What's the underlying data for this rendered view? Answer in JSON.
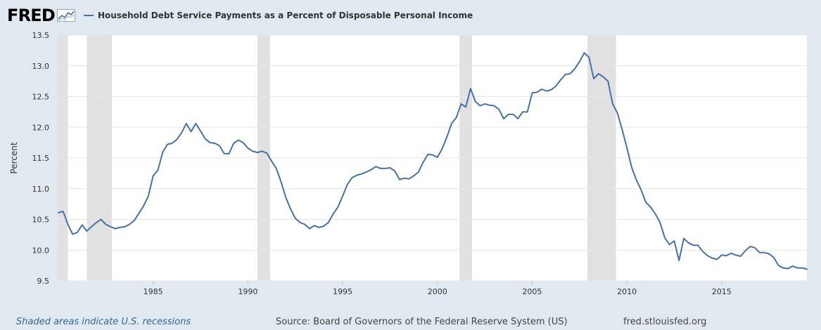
{
  "header": {
    "logo_text": "FRED",
    "legend_label": "Household Debt Service Payments as a Percent of Disposable Personal Income"
  },
  "footer": {
    "recession_note": "Shaded areas indicate U.S. recessions",
    "source": "Source: Board of Governors of the Federal Reserve System (US)",
    "site": "fred.stlouisfed.org"
  },
  "colors": {
    "page_background": "#e1e9f0",
    "plot_background": "#ffffff",
    "series_line": "#4572a7",
    "recession_shade": "#e1e1e1",
    "gridline": "#e6e6e6"
  },
  "chart_data": {
    "type": "line",
    "title": "",
    "xlabel": "",
    "ylabel": "Percent",
    "xlim": [
      1980.0,
      2019.5
    ],
    "ylim": [
      9.5,
      13.5
    ],
    "grid": true,
    "yticks": [
      9.5,
      10.0,
      10.5,
      11.0,
      11.5,
      12.0,
      12.5,
      13.0,
      13.5
    ],
    "ytick_labels": [
      "9.5",
      "10.0",
      "10.5",
      "11.0",
      "11.5",
      "12.0",
      "12.5",
      "13.0",
      "13.5"
    ],
    "xticks": [
      1985,
      1990,
      1995,
      2000,
      2005,
      2010,
      2015
    ],
    "xtick_labels": [
      "1985",
      "1990",
      "1995",
      "2000",
      "2005",
      "2010",
      "2015"
    ],
    "recessions": [
      [
        1980.0,
        1980.5
      ],
      [
        1981.5,
        1982.83
      ],
      [
        1990.5,
        1991.17
      ],
      [
        2001.17,
        2001.83
      ],
      [
        2007.92,
        2009.42
      ]
    ],
    "series": [
      {
        "name": "Household Debt Service Payments as a Percent of Disposable Personal Income",
        "x": [
          1980.0,
          1980.25,
          1980.5,
          1980.75,
          1981.0,
          1981.25,
          1981.5,
          1981.75,
          1982.0,
          1982.25,
          1982.5,
          1982.75,
          1983.0,
          1983.25,
          1983.5,
          1983.75,
          1984.0,
          1984.25,
          1984.5,
          1984.75,
          1985.0,
          1985.25,
          1985.5,
          1985.75,
          1986.0,
          1986.25,
          1986.5,
          1986.75,
          1987.0,
          1987.25,
          1987.5,
          1987.75,
          1988.0,
          1988.25,
          1988.5,
          1988.75,
          1989.0,
          1989.25,
          1989.5,
          1989.75,
          1990.0,
          1990.25,
          1990.5,
          1990.75,
          1991.0,
          1991.25,
          1991.5,
          1991.75,
          1992.0,
          1992.25,
          1992.5,
          1992.75,
          1993.0,
          1993.25,
          1993.5,
          1993.75,
          1994.0,
          1994.25,
          1994.5,
          1994.75,
          1995.0,
          1995.25,
          1995.5,
          1995.75,
          1996.0,
          1996.25,
          1996.5,
          1996.75,
          1997.0,
          1997.25,
          1997.5,
          1997.75,
          1998.0,
          1998.25,
          1998.5,
          1998.75,
          1999.0,
          1999.25,
          1999.5,
          1999.75,
          2000.0,
          2000.25,
          2000.5,
          2000.75,
          2001.0,
          2001.25,
          2001.5,
          2001.75,
          2002.0,
          2002.25,
          2002.5,
          2002.75,
          2003.0,
          2003.25,
          2003.5,
          2003.75,
          2004.0,
          2004.25,
          2004.5,
          2004.75,
          2005.0,
          2005.25,
          2005.5,
          2005.75,
          2006.0,
          2006.25,
          2006.5,
          2006.75,
          2007.0,
          2007.25,
          2007.5,
          2007.75,
          2008.0,
          2008.25,
          2008.5,
          2008.75,
          2009.0,
          2009.25,
          2009.5,
          2009.75,
          2010.0,
          2010.25,
          2010.5,
          2010.75,
          2011.0,
          2011.25,
          2011.5,
          2011.75,
          2012.0,
          2012.25,
          2012.5,
          2012.75,
          2013.0,
          2013.25,
          2013.5,
          2013.75,
          2014.0,
          2014.25,
          2014.5,
          2014.75,
          2015.0,
          2015.25,
          2015.5,
          2015.75,
          2016.0,
          2016.25,
          2016.5,
          2016.75,
          2017.0,
          2017.25,
          2017.5,
          2017.75,
          2018.0,
          2018.25,
          2018.5,
          2018.75,
          2019.0,
          2019.25,
          2019.5
        ],
        "values": [
          10.61,
          10.63,
          10.42,
          10.26,
          10.29,
          10.41,
          10.31,
          10.38,
          10.45,
          10.5,
          10.42,
          10.38,
          10.35,
          10.37,
          10.38,
          10.42,
          10.48,
          10.6,
          10.72,
          10.88,
          11.21,
          11.3,
          11.59,
          11.72,
          11.74,
          11.8,
          11.91,
          12.06,
          11.93,
          12.06,
          11.94,
          11.81,
          11.75,
          11.74,
          11.7,
          11.57,
          11.57,
          11.74,
          11.79,
          11.75,
          11.66,
          11.61,
          11.59,
          11.61,
          11.58,
          11.45,
          11.33,
          11.11,
          10.86,
          10.67,
          10.52,
          10.45,
          10.42,
          10.35,
          10.4,
          10.37,
          10.39,
          10.45,
          10.59,
          10.7,
          10.88,
          11.07,
          11.18,
          11.22,
          11.24,
          11.27,
          11.31,
          11.36,
          11.33,
          11.33,
          11.34,
          11.29,
          11.15,
          11.17,
          11.16,
          11.21,
          11.27,
          11.43,
          11.56,
          11.55,
          11.51,
          11.65,
          11.84,
          12.06,
          12.16,
          12.38,
          12.33,
          12.63,
          12.42,
          12.35,
          12.38,
          12.36,
          12.35,
          12.29,
          12.14,
          12.21,
          12.21,
          12.14,
          12.25,
          12.25,
          12.56,
          12.57,
          12.62,
          12.59,
          12.61,
          12.67,
          12.77,
          12.86,
          12.87,
          12.95,
          13.07,
          13.21,
          13.14,
          12.79,
          12.87,
          12.82,
          12.75,
          12.38,
          12.23,
          11.96,
          11.67,
          11.35,
          11.14,
          10.98,
          10.78,
          10.7,
          10.59,
          10.45,
          10.2,
          10.09,
          10.15,
          9.83,
          10.19,
          10.12,
          10.08,
          10.08,
          9.98,
          9.91,
          9.87,
          9.85,
          9.92,
          9.91,
          9.95,
          9.92,
          9.9,
          9.99,
          10.06,
          10.04,
          9.96,
          9.96,
          9.94,
          9.88,
          9.75,
          9.71,
          9.7,
          9.74,
          9.71,
          9.71,
          9.69
        ]
      }
    ]
  }
}
